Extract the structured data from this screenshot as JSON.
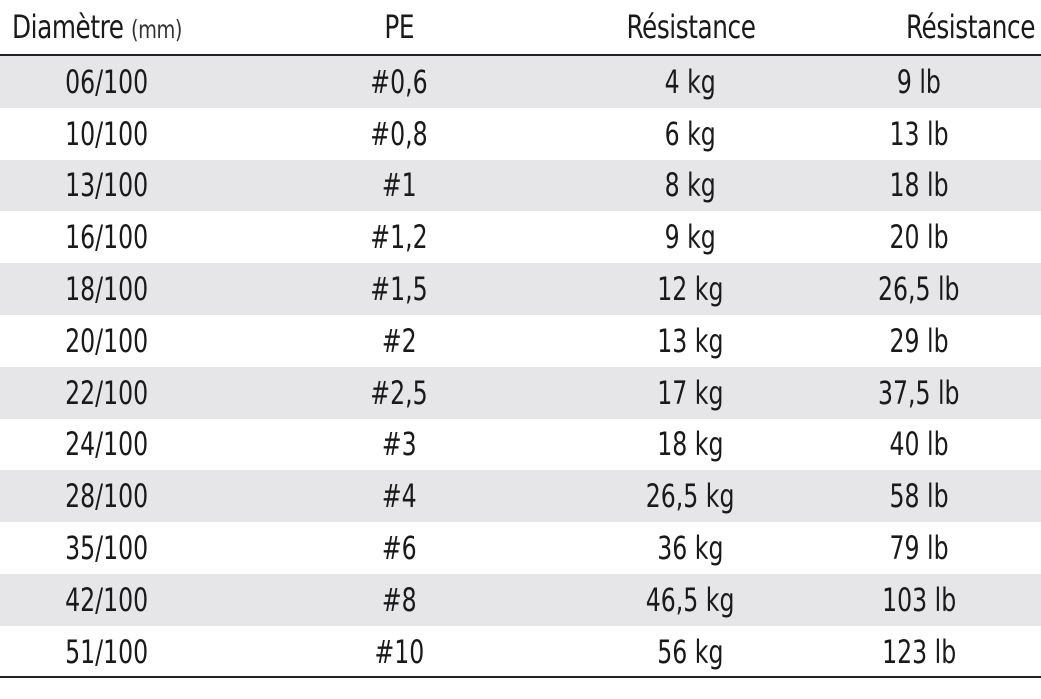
{
  "header": {
    "col1_label": "Diamètre",
    "col1_unit": "(mm)",
    "col2_label": "PE",
    "col3_label": "Résistance",
    "col4_label": "Résistance"
  },
  "rows": [
    {
      "diameter": "06/100",
      "pe": "#0,6",
      "kg": "4 kg",
      "lb": "9 lb"
    },
    {
      "diameter": "10/100",
      "pe": "#0,8",
      "kg": "6 kg",
      "lb": "13 lb"
    },
    {
      "diameter": "13/100",
      "pe": "#1",
      "kg": "8 kg",
      "lb": "18 lb"
    },
    {
      "diameter": "16/100",
      "pe": "#1,2",
      "kg": "9 kg",
      "lb": "20 lb"
    },
    {
      "diameter": "18/100",
      "pe": "#1,5",
      "kg": "12 kg",
      "lb": "26,5 lb"
    },
    {
      "diameter": "20/100",
      "pe": "#2",
      "kg": "13 kg",
      "lb": "29 lb"
    },
    {
      "diameter": "22/100",
      "pe": "#2,5",
      "kg": "17 kg",
      "lb": "37,5 lb"
    },
    {
      "diameter": "24/100",
      "pe": "#3",
      "kg": "18 kg",
      "lb": "40 lb"
    },
    {
      "diameter": "28/100",
      "pe": "#4",
      "kg": "26,5 kg",
      "lb": "58 lb"
    },
    {
      "diameter": "35/100",
      "pe": "#6",
      "kg": "36 kg",
      "lb": "79 lb"
    },
    {
      "diameter": "42/100",
      "pe": "#8",
      "kg": "46,5 kg",
      "lb": "103 lb"
    },
    {
      "diameter": "51/100",
      "pe": "#10",
      "kg": "56 kg",
      "lb": "123 lb"
    }
  ],
  "colors": {
    "stripe": "#e6e6e8",
    "text": "#1a1a1a",
    "rule": "#222222"
  }
}
